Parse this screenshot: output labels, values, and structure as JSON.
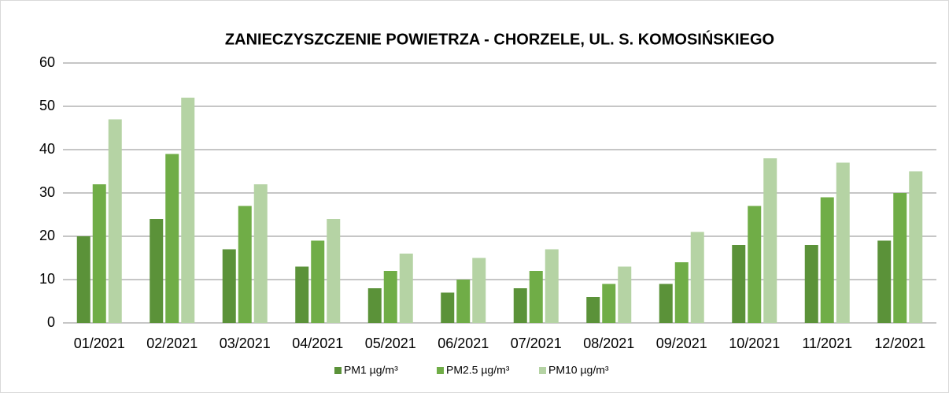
{
  "chart_data": {
    "type": "bar",
    "title": "ZANIECZYSZCZENIE POWIETRZA - CHORZELE, UL. S. KOMOSIŃSKIEGO",
    "categories": [
      "01/2021",
      "02/2021",
      "03/2021",
      "04/2021",
      "05/2021",
      "06/2021",
      "07/2021",
      "08/2021",
      "09/2021",
      "10/2021",
      "11/2021",
      "12/2021"
    ],
    "series": [
      {
        "name": "PM1 µg/m³",
        "color": "#5b9239",
        "values": [
          20,
          24,
          17,
          13,
          8,
          7,
          8,
          6,
          9,
          18,
          18,
          19
        ]
      },
      {
        "name": "PM2.5 µg/m³",
        "color": "#70ad47",
        "values": [
          32,
          39,
          27,
          19,
          12,
          10,
          12,
          9,
          14,
          27,
          29,
          30
        ]
      },
      {
        "name": "PM10 µg/m³",
        "color": "#b5d3a4",
        "values": [
          47,
          52,
          32,
          24,
          16,
          15,
          17,
          13,
          21,
          38,
          37,
          35
        ]
      }
    ],
    "ylim": [
      0,
      60
    ],
    "yticks": [
      0,
      10,
      20,
      30,
      40,
      50,
      60
    ],
    "grid": true,
    "legend": "bottom"
  }
}
